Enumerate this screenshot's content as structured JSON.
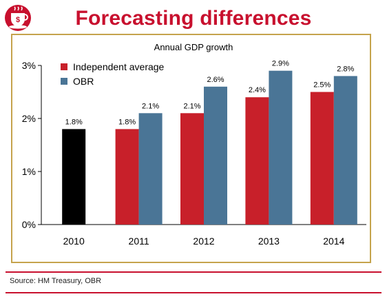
{
  "header": {
    "title": "Forecasting differences",
    "logo_icon": "coffee-cup-icon",
    "logo_letter": "$"
  },
  "footer": {
    "source": "Source: HM Treasury, OBR"
  },
  "colors": {
    "accent": "#c8102e",
    "frame": "#c5a34c",
    "actual": "#000000",
    "independent": "#c8202a",
    "obr": "#4a7596"
  },
  "chart_data": {
    "type": "bar",
    "title": "Annual GDP growth",
    "categories": [
      "2010",
      "2011",
      "2012",
      "2013",
      "2014"
    ],
    "series": [
      {
        "name": "",
        "color": "#000000",
        "values": [
          1.8,
          null,
          null,
          null,
          null
        ]
      },
      {
        "name": "Independent average",
        "color": "#c8202a",
        "values": [
          null,
          1.8,
          2.1,
          2.4,
          2.5
        ]
      },
      {
        "name": "OBR",
        "color": "#4a7596",
        "values": [
          null,
          2.1,
          2.6,
          2.9,
          2.8
        ]
      }
    ],
    "value_labels": [
      {
        "category": "2010",
        "series": 0,
        "label": "1.8%"
      },
      {
        "category": "2011",
        "series": 1,
        "label": "1.8%"
      },
      {
        "category": "2011",
        "series": 2,
        "label": "2.1%"
      },
      {
        "category": "2012",
        "series": 1,
        "label": "2.1%"
      },
      {
        "category": "2012",
        "series": 2,
        "label": "2.6%"
      },
      {
        "category": "2013",
        "series": 1,
        "label": "2.4%"
      },
      {
        "category": "2013",
        "series": 2,
        "label": "2.9%"
      },
      {
        "category": "2014",
        "series": 1,
        "label": "2.5%"
      },
      {
        "category": "2014",
        "series": 2,
        "label": "2.8%"
      }
    ],
    "y_ticks": [
      "0%",
      "1%",
      "2%",
      "3%"
    ],
    "ylim": [
      0,
      3
    ],
    "xlabel": "",
    "ylabel": "",
    "grid": false,
    "legend": "top-left"
  }
}
